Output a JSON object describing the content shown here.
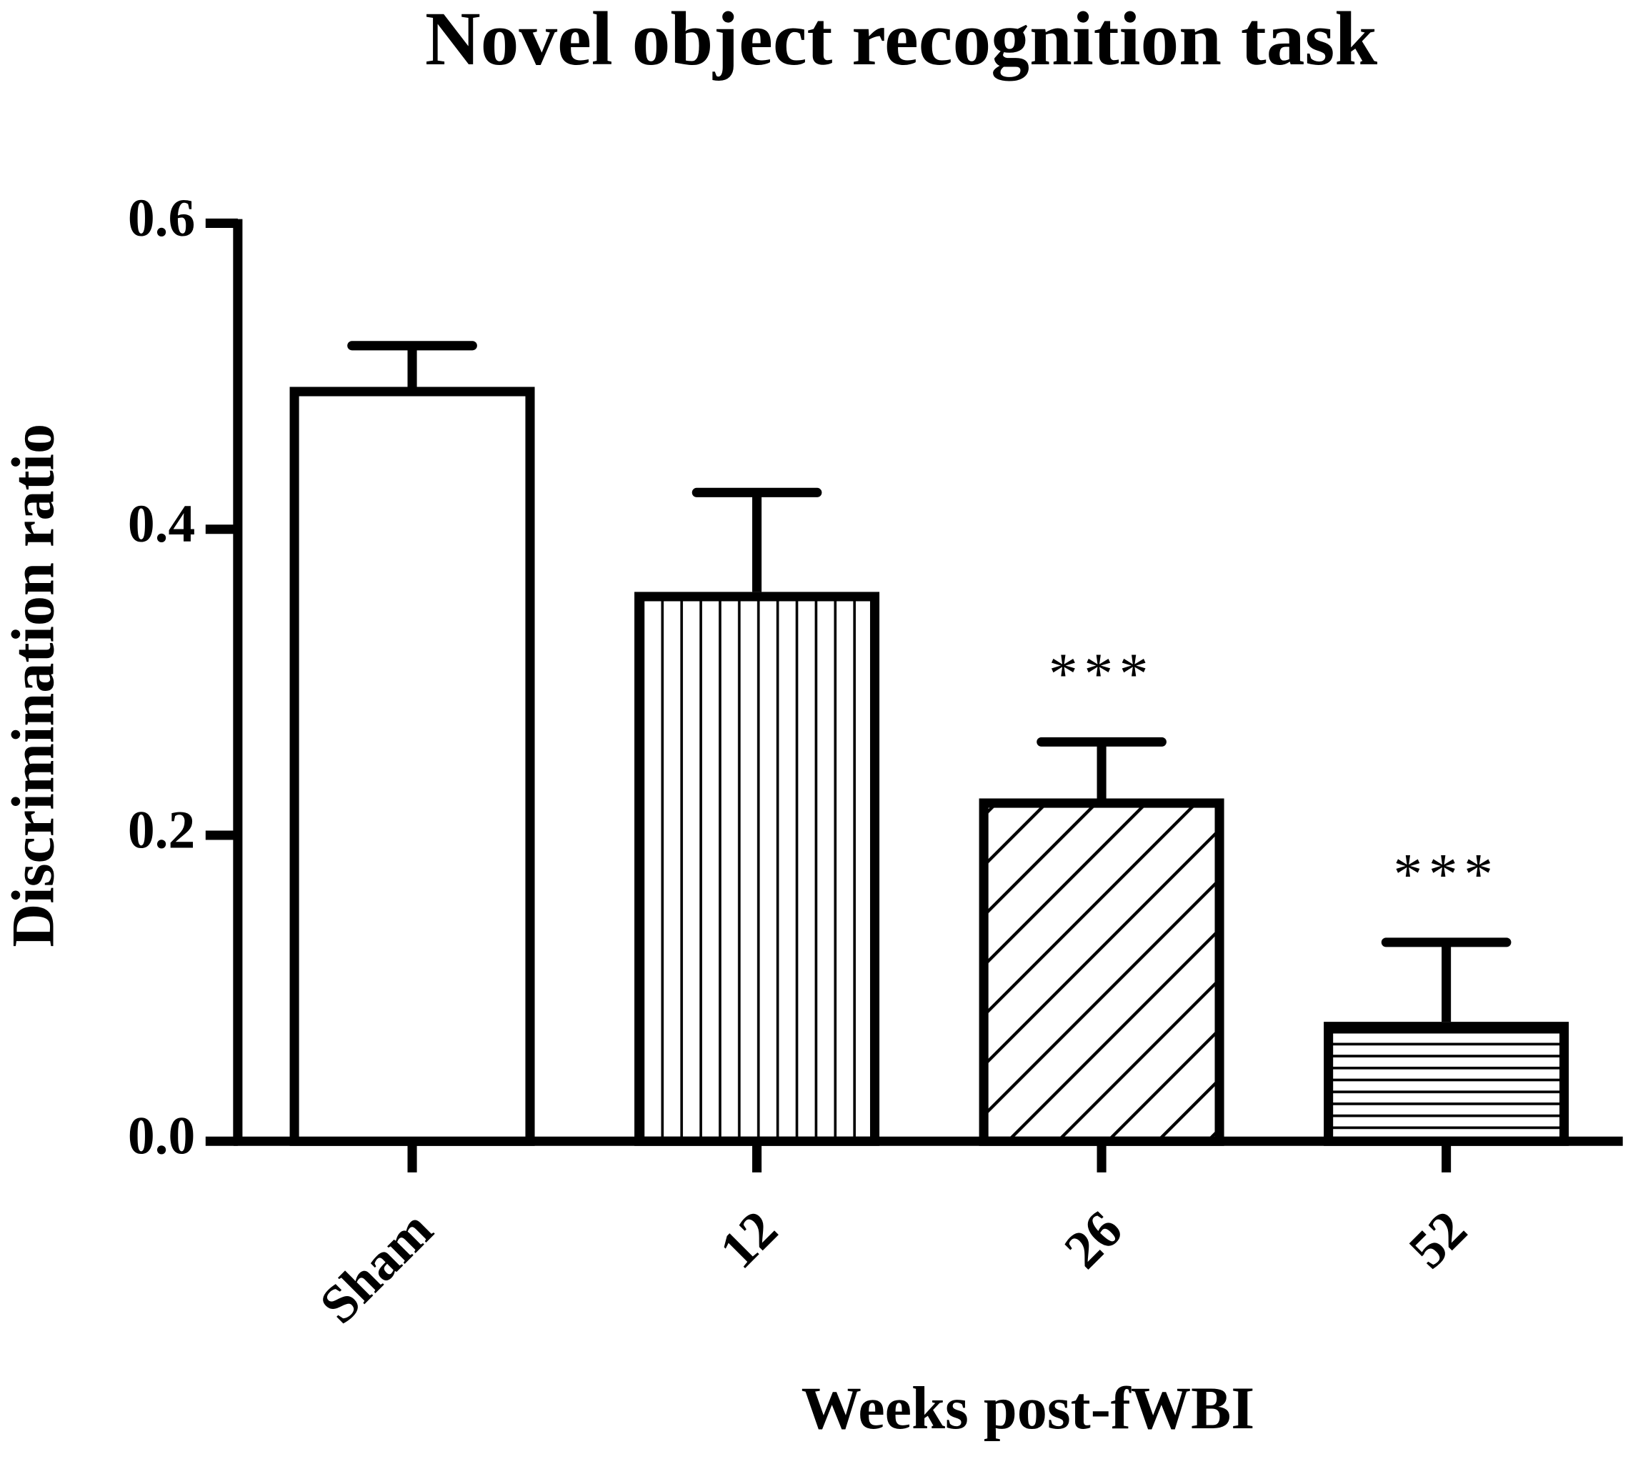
{
  "chart_data": {
    "type": "bar",
    "title": "Novel object recognition task",
    "x_label": "Weeks post-fWBI",
    "y_label": "Discrimination  ratio",
    "categories": [
      "Sham",
      "12",
      "26",
      "52"
    ],
    "values": [
      0.49,
      0.356,
      0.221,
      0.075
    ],
    "errors": [
      0.03,
      0.068,
      0.04,
      0.055
    ],
    "significance": [
      null,
      null,
      "***",
      "***"
    ],
    "patterns": [
      "none",
      "vertical",
      "diagonal",
      "horizontal"
    ],
    "color": "#000000",
    "ylim": [
      0,
      0.6
    ],
    "yticks": [
      {
        "value": 0,
        "label": "0.0"
      },
      {
        "value": 0.2,
        "label": "0.2"
      },
      {
        "value": 0.4,
        "label": "0.4"
      },
      {
        "value": 0.6,
        "label": "0.6"
      }
    ],
    "grid": false
  }
}
